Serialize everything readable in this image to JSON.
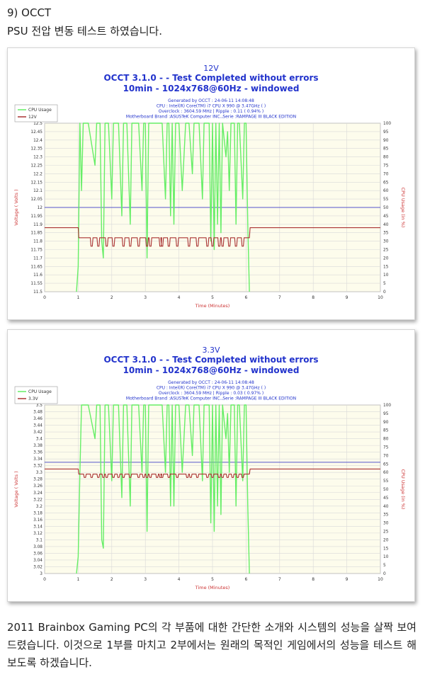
{
  "heading": {
    "section": "9) OCCT",
    "subtitle": "PSU 전압 변동 테스트 하였습니다."
  },
  "paragraph": "2011 Brainbox Gaming PC의 각 부품에 대한 간단한 소개와 시스템의 성능을 살짝 보여드렸습니다. 이것으로 1부를 마치고 2부에서는 원래의 목적인 게임에서의 성능을 테스트 해보도록 하겠습니다.",
  "colors": {
    "cpu": "#66ee66",
    "voltage": "#aa3333",
    "reference": "#5555cc",
    "grid": "#d9d9d9",
    "plot_bg": "#fdfcec",
    "title": "#2233cc"
  },
  "chart_data": [
    {
      "type": "line",
      "title": "12V",
      "subtitle_1": "OCCT 3.1.0 -  - Test Completed without errors",
      "subtitle_2": "10min - 1024x768@60Hz - windowed",
      "info": [
        "Generated by OCCT : 24-06-11 14:08:48",
        "CPU : Intel(R) Core(TM) i7 CPU X 990 @ 3.47GHz (  )",
        "Overclock : 3604.59 MHz | Ripple : 0.11 ( 0.94% )",
        "Motherboard Brand :ASUSTeK Computer INC.,Serie :RAMPAGE III BLACK EDITION"
      ],
      "xlabel": "Time (Minutes)",
      "ylabel": "Voltage ( Volts )",
      "y2label": "CPU Usage (in %)",
      "legend": [
        "CPU Usage",
        "12V"
      ],
      "xlim": [
        0,
        10
      ],
      "x_ticks": [
        "0",
        "1",
        "2",
        "3",
        "4",
        "5",
        "6",
        "7",
        "8",
        "9",
        "10"
      ],
      "ylim": [
        11.5,
        12.5
      ],
      "y_ticks": [
        "11.5",
        "11.55",
        "11.6",
        "11.65",
        "11.7",
        "11.75",
        "11.8",
        "11.85",
        "11.9",
        "11.95",
        "12",
        "12.05",
        "12.1",
        "12.15",
        "12.2",
        "12.25",
        "12.3",
        "12.35",
        "12.4",
        "12.45",
        "12.5"
      ],
      "y2lim": [
        0,
        100
      ],
      "y2_ticks": [
        "0",
        "5",
        "10",
        "15",
        "20",
        "25",
        "30",
        "35",
        "40",
        "45",
        "50",
        "55",
        "60",
        "65",
        "70",
        "75",
        "80",
        "85",
        "90",
        "95",
        "100"
      ],
      "reference_value": 12.0,
      "voltage_idle": 11.88,
      "voltage_load": 11.82,
      "voltage_dip": 11.77,
      "load_start": 1.0,
      "load_end": 6.1,
      "cpu_series": [
        [
          0.95,
          0
        ],
        [
          1.0,
          15
        ],
        [
          1.05,
          100
        ],
        [
          1.1,
          60
        ],
        [
          1.15,
          100
        ],
        [
          1.2,
          100
        ],
        [
          1.3,
          100
        ],
        [
          1.5,
          75
        ],
        [
          1.55,
          100
        ],
        [
          1.65,
          100
        ],
        [
          1.7,
          30
        ],
        [
          1.75,
          20
        ],
        [
          1.8,
          100
        ],
        [
          1.9,
          100
        ],
        [
          2.0,
          55
        ],
        [
          2.05,
          100
        ],
        [
          2.2,
          100
        ],
        [
          2.3,
          45
        ],
        [
          2.35,
          100
        ],
        [
          2.45,
          100
        ],
        [
          2.55,
          40
        ],
        [
          2.6,
          100
        ],
        [
          2.8,
          100
        ],
        [
          2.9,
          60
        ],
        [
          2.95,
          100
        ],
        [
          3.0,
          100
        ],
        [
          3.05,
          20
        ],
        [
          3.1,
          100
        ],
        [
          3.3,
          100
        ],
        [
          3.5,
          100
        ],
        [
          3.6,
          55
        ],
        [
          3.65,
          100
        ],
        [
          3.7,
          100
        ],
        [
          3.75,
          45
        ],
        [
          3.8,
          100
        ],
        [
          3.85,
          40
        ],
        [
          3.9,
          100
        ],
        [
          4.0,
          100
        ],
        [
          4.1,
          60
        ],
        [
          4.2,
          100
        ],
        [
          4.3,
          100
        ],
        [
          4.4,
          70
        ],
        [
          4.45,
          100
        ],
        [
          4.6,
          100
        ],
        [
          4.7,
          55
        ],
        [
          4.75,
          100
        ],
        [
          4.9,
          100
        ],
        [
          4.95,
          30
        ],
        [
          5.0,
          100
        ],
        [
          5.05,
          25
        ],
        [
          5.1,
          100
        ],
        [
          5.15,
          40
        ],
        [
          5.2,
          100
        ],
        [
          5.25,
          35
        ],
        [
          5.3,
          100
        ],
        [
          5.4,
          80
        ],
        [
          5.45,
          95
        ],
        [
          5.5,
          60
        ],
        [
          5.55,
          100
        ],
        [
          5.65,
          100
        ],
        [
          5.7,
          40
        ],
        [
          5.75,
          100
        ],
        [
          5.8,
          100
        ],
        [
          5.9,
          55
        ],
        [
          5.95,
          100
        ],
        [
          6.0,
          100
        ],
        [
          6.05,
          40
        ],
        [
          6.1,
          0
        ]
      ],
      "dips": [
        1.4,
        1.6,
        1.85,
        2.05,
        2.35,
        2.55,
        2.8,
        3.05,
        3.15,
        3.45,
        3.5,
        3.7,
        3.95,
        4.3,
        4.55,
        4.85,
        5.0,
        5.2,
        5.3,
        5.5,
        5.7,
        5.9
      ]
    },
    {
      "type": "line",
      "title": "3.3V",
      "subtitle_1": "OCCT 3.1.0 -  - Test Completed without errors",
      "subtitle_2": "10min - 1024x768@60Hz - windowed",
      "info": [
        "Generated by OCCT : 24-06-11 14:08:48",
        "CPU : Intel(R) Core(TM) i7 CPU X 990 @ 3.47GHz (  )",
        "Overclock : 3604.59 MHz | Ripple : 0.03 ( 0.97% )",
        "Motherboard Brand :ASUSTeK Computer INC.,Serie :RAMPAGE III BLACK EDITION"
      ],
      "xlabel": "Time (Minutes)",
      "ylabel": "Voltage ( Volts )",
      "y2label": "CPU Usage (in %)",
      "legend": [
        "CPU Usage",
        "3.3V"
      ],
      "xlim": [
        0,
        10
      ],
      "x_ticks": [
        "0",
        "1",
        "2",
        "3",
        "4",
        "5",
        "6",
        "7",
        "8",
        "9",
        "10"
      ],
      "ylim": [
        3.0,
        3.5
      ],
      "y_ticks": [
        "3",
        "3.02",
        "3.04",
        "3.06",
        "3.08",
        "3.1",
        "3.12",
        "3.14",
        "3.16",
        "3.18",
        "3.2",
        "3.22",
        "3.24",
        "3.26",
        "3.28",
        "3.3",
        "3.32",
        "3.34",
        "3.36",
        "3.38",
        "3.4",
        "3.42",
        "3.44",
        "3.46",
        "3.48",
        "3.5"
      ],
      "y2lim": [
        0,
        100
      ],
      "y2_ticks": [
        "0",
        "5",
        "10",
        "15",
        "20",
        "25",
        "30",
        "35",
        "40",
        "45",
        "50",
        "55",
        "60",
        "65",
        "70",
        "75",
        "80",
        "85",
        "90",
        "95",
        "100"
      ],
      "reference_value": 3.33,
      "voltage_idle": 3.31,
      "voltage_load": 3.295,
      "voltage_dip": 3.285,
      "load_start": 1.0,
      "load_end": 6.1,
      "cpu_series": [
        [
          0.95,
          0
        ],
        [
          1.0,
          10
        ],
        [
          1.05,
          60
        ],
        [
          1.1,
          100
        ],
        [
          1.2,
          100
        ],
        [
          1.3,
          100
        ],
        [
          1.5,
          80
        ],
        [
          1.55,
          100
        ],
        [
          1.65,
          100
        ],
        [
          1.7,
          20
        ],
        [
          1.75,
          15
        ],
        [
          1.8,
          100
        ],
        [
          1.9,
          100
        ],
        [
          2.0,
          55
        ],
        [
          2.05,
          100
        ],
        [
          2.2,
          100
        ],
        [
          2.3,
          45
        ],
        [
          2.35,
          100
        ],
        [
          2.45,
          100
        ],
        [
          2.55,
          40
        ],
        [
          2.6,
          100
        ],
        [
          2.8,
          100
        ],
        [
          2.9,
          60
        ],
        [
          2.95,
          100
        ],
        [
          3.0,
          100
        ],
        [
          3.05,
          25
        ],
        [
          3.1,
          100
        ],
        [
          3.3,
          100
        ],
        [
          3.5,
          100
        ],
        [
          3.6,
          60
        ],
        [
          3.65,
          100
        ],
        [
          3.7,
          100
        ],
        [
          3.75,
          40
        ],
        [
          3.8,
          100
        ],
        [
          3.85,
          40
        ],
        [
          3.9,
          100
        ],
        [
          4.0,
          100
        ],
        [
          4.1,
          60
        ],
        [
          4.2,
          100
        ],
        [
          4.3,
          100
        ],
        [
          4.4,
          70
        ],
        [
          4.45,
          100
        ],
        [
          4.6,
          100
        ],
        [
          4.7,
          55
        ],
        [
          4.75,
          100
        ],
        [
          4.9,
          100
        ],
        [
          4.95,
          30
        ],
        [
          5.0,
          100
        ],
        [
          5.05,
          25
        ],
        [
          5.1,
          100
        ],
        [
          5.15,
          40
        ],
        [
          5.2,
          100
        ],
        [
          5.25,
          35
        ],
        [
          5.3,
          100
        ],
        [
          5.4,
          80
        ],
        [
          5.45,
          95
        ],
        [
          5.5,
          60
        ],
        [
          5.55,
          100
        ],
        [
          5.65,
          100
        ],
        [
          5.7,
          40
        ],
        [
          5.75,
          100
        ],
        [
          5.8,
          100
        ],
        [
          5.9,
          55
        ],
        [
          5.95,
          100
        ],
        [
          6.0,
          100
        ],
        [
          6.05,
          40
        ],
        [
          6.1,
          0
        ]
      ],
      "dips": [
        1.2,
        1.4,
        1.6,
        1.75,
        1.85,
        2.05,
        2.2,
        2.35,
        2.55,
        2.8,
        2.95,
        3.05,
        3.15,
        3.35,
        3.45,
        3.5,
        3.7,
        3.95,
        4.25,
        4.35,
        4.55,
        4.85,
        5.0,
        5.2,
        5.3,
        5.45,
        5.6,
        5.75,
        5.9
      ]
    }
  ]
}
